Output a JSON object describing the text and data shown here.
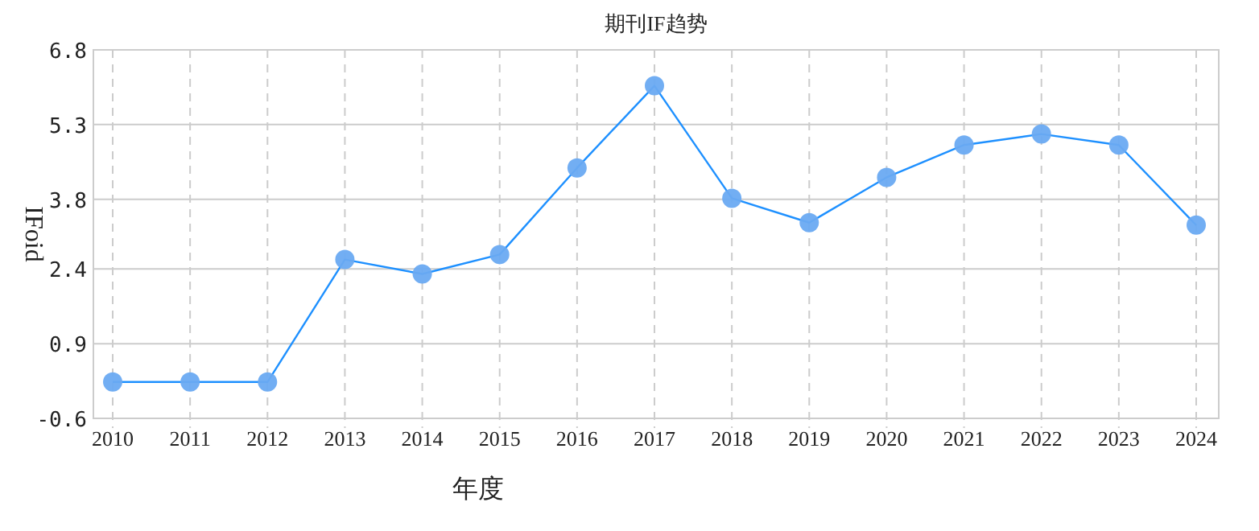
{
  "chart_data": {
    "type": "line",
    "title": "期刊IF趋势",
    "xlabel": "年度",
    "ylabel": "IFoid",
    "categories": [
      "2010",
      "2011",
      "2012",
      "2013",
      "2014",
      "2015",
      "2016",
      "2017",
      "2018",
      "2019",
      "2020",
      "2021",
      "2022",
      "2023",
      "2024"
    ],
    "series": [
      {
        "color": "#1e90ff",
        "values": [
          0.13,
          0.13,
          0.13,
          2.59,
          2.3,
          2.69,
          4.43,
          6.08,
          3.82,
          3.33,
          4.24,
          4.89,
          5.11,
          4.89,
          3.28
        ]
      }
    ],
    "ylim": [
      -0.6,
      6.8
    ],
    "yticks": [
      -0.6,
      0.9,
      2.4,
      3.8,
      5.3,
      6.8
    ],
    "grid": true,
    "marker": "circle",
    "line_style": "solid"
  }
}
